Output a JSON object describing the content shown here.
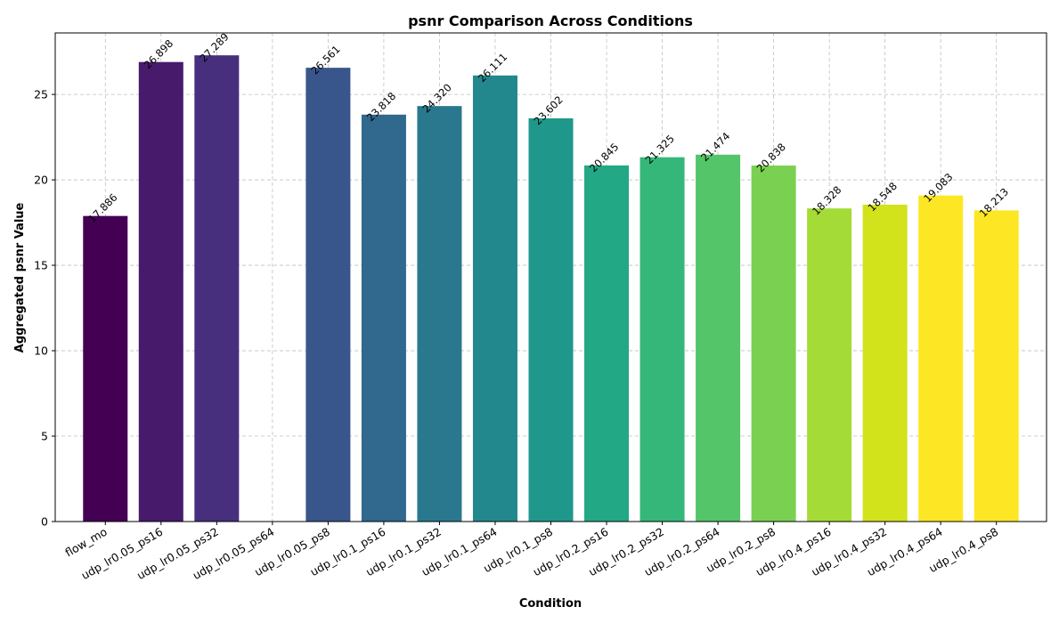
{
  "chart_data": {
    "type": "bar",
    "title": "psnr Comparison Across Conditions",
    "xlabel": "Condition",
    "ylabel": "Aggregated psnr Value",
    "ylim": [
      0,
      28.6
    ],
    "yticks": [
      0,
      5,
      10,
      15,
      20,
      25
    ],
    "grid": true,
    "categories": [
      "flow_mo",
      "udp_lr0.05_ps16",
      "udp_lr0.05_ps32",
      "udp_lr0.05_ps64",
      "udp_lr0.05_ps8",
      "udp_lr0.1_ps16",
      "udp_lr0.1_ps32",
      "udp_lr0.1_ps64",
      "udp_lr0.1_ps8",
      "udp_lr0.2_ps16",
      "udp_lr0.2_ps32",
      "udp_lr0.2_ps64",
      "udp_lr0.2_ps8",
      "udp_lr0.4_ps16",
      "udp_lr0.4_ps32",
      "udp_lr0.4_ps64",
      "udp_lr0.4_ps8"
    ],
    "values": [
      17.886,
      26.898,
      27.289,
      null,
      26.561,
      23.818,
      24.32,
      26.111,
      23.602,
      20.845,
      21.325,
      21.474,
      20.838,
      18.328,
      18.548,
      19.083,
      18.213
    ],
    "value_labels": [
      "17.886",
      "26.898",
      "27.289",
      "",
      "26.561",
      "23.818",
      "24.320",
      "26.111",
      "23.602",
      "20.845",
      "21.325",
      "21.474",
      "20.838",
      "18.328",
      "18.548",
      "19.083",
      "18.213"
    ],
    "colors": [
      "#440154",
      "#481a6c",
      "#472f7d",
      "#414487",
      "#39568c",
      "#31688e",
      "#2a788e",
      "#23888e",
      "#1f988b",
      "#22a884",
      "#35b779",
      "#54c568",
      "#7ad151",
      "#a5db36",
      "#d2e21b",
      "#fde725",
      "#fde725"
    ],
    "colormap": "viridis"
  }
}
